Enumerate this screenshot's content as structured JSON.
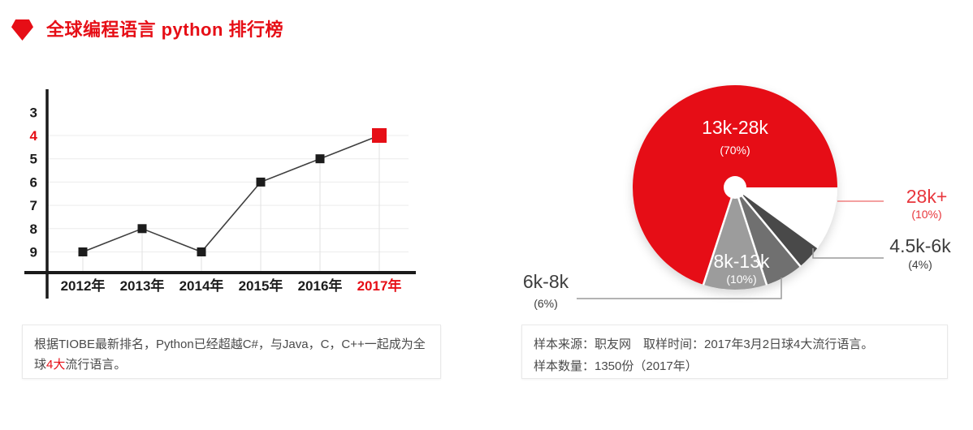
{
  "header": {
    "title": "全球编程语言 python 排行榜",
    "accent_color": "#e60e16",
    "icon": "pentagon-icon"
  },
  "chart_data": [
    {
      "type": "line",
      "x": [
        "2012年",
        "2013年",
        "2014年",
        "2015年",
        "2016年",
        "2017年"
      ],
      "values": [
        9,
        8,
        9,
        6,
        5,
        4
      ],
      "y_ticks": [
        3,
        4,
        5,
        6,
        7,
        8,
        9
      ],
      "y_axis_reversed": true,
      "ylim": [
        3,
        9
      ],
      "grid": true,
      "legend_position": "none",
      "highlight_x": "2017年",
      "highlight_value": 4,
      "line_color": "#3f3f3f",
      "marker_color": "#1c1c1c",
      "highlight_color": "#e60e16"
    },
    {
      "type": "pie",
      "donut_hole": true,
      "start_angle_deg": 0,
      "direction": "clockwise",
      "legend_position": "none",
      "slices": [
        {
          "label": "28k+",
          "pct": 10,
          "pct_label": "(10%)",
          "color": "#ffffff",
          "label_color": "#e8363c"
        },
        {
          "label": "4.5k-6k",
          "pct": 4,
          "pct_label": "(4%)",
          "color": "#4a4a4a",
          "label_color": "#3d3d3d"
        },
        {
          "label": "6k-8k",
          "pct": 6,
          "pct_label": "(6%)",
          "color": "#6f6f6f",
          "label_color": "#3d3d3d"
        },
        {
          "label": "8k-13k",
          "pct": 10,
          "pct_label": "(10%)",
          "color": "#9c9c9c",
          "label_color": "#ffffff"
        },
        {
          "label": "13k-28k",
          "pct": 70,
          "pct_label": "(70%)",
          "color": "#e60e16",
          "label_color": "#ffffff"
        }
      ]
    }
  ],
  "notes": {
    "left": {
      "segments": [
        {
          "text": "根据TIOBE最新排名，Python已经超越C#，与Java，C，C++一起成为全球"
        },
        {
          "text": "4大",
          "highlight": true
        },
        {
          "text": "流行语言。"
        }
      ]
    },
    "right": {
      "lines": [
        "样本来源：职友网　取样时间：2017年3月2日球4大流行语言。",
        "样本数量：1350份（2017年）"
      ]
    }
  }
}
